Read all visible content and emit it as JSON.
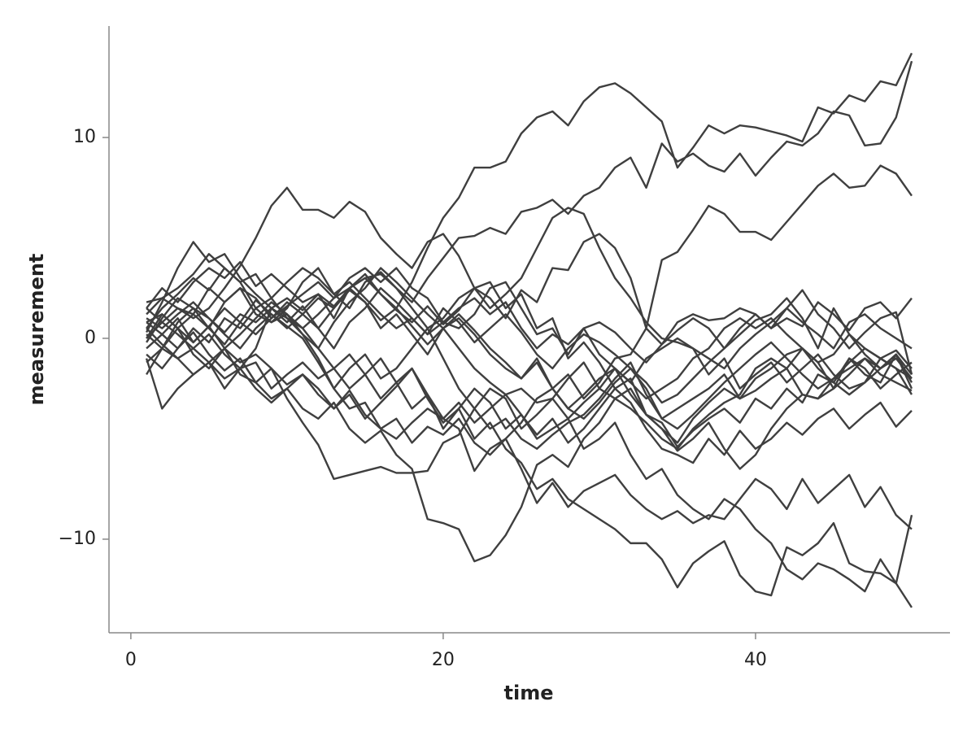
{
  "chart_data": {
    "type": "line",
    "xlabel": "time",
    "ylabel": "measurement",
    "xlim": [
      -1.4,
      52.45
    ],
    "ylim": [
      -14.66,
      15.55
    ],
    "xticks": [
      0,
      20,
      40
    ],
    "yticks": [
      {
        "value": -10,
        "label": "−10"
      },
      0,
      10
    ],
    "color": "#3f3f3f",
    "x": [
      1,
      2,
      3,
      4,
      5,
      6,
      7,
      8,
      9,
      10,
      11,
      12,
      13,
      14,
      15,
      16,
      17,
      18,
      19,
      20,
      21,
      22,
      23,
      24,
      25,
      26,
      27,
      28,
      29,
      30,
      31,
      32,
      33,
      34,
      35,
      36,
      37,
      38,
      39,
      40,
      41,
      42,
      43,
      44,
      45,
      46,
      47,
      48,
      49,
      50
    ],
    "series": [
      {
        "values": [
          1.0,
          0.5,
          1.2,
          1.8,
          1.0,
          0.3,
          1.2,
          0.8,
          1.5,
          2.0,
          1.4,
          2.2,
          1.6,
          2.5,
          3.0,
          2.2,
          1.5,
          2.8,
          4.5,
          6.0,
          7.0,
          8.5,
          8.5,
          8.8,
          10.2,
          11.0,
          11.3,
          10.6,
          11.8,
          12.5,
          12.7,
          12.2,
          11.5,
          10.8,
          8.5,
          9.5,
          10.6,
          10.2,
          10.6,
          10.5,
          10.3,
          10.1,
          9.8,
          11.5,
          11.2,
          12.1,
          11.8,
          12.8,
          12.6,
          14.2
        ]
      },
      {
        "values": [
          0.5,
          1.5,
          2.2,
          3.0,
          2.4,
          3.5,
          2.8,
          3.2,
          2.0,
          2.8,
          3.5,
          3.0,
          2.2,
          1.5,
          2.8,
          3.3,
          2.5,
          1.8,
          3.0,
          4.0,
          5.0,
          5.1,
          5.5,
          5.2,
          6.3,
          6.5,
          6.9,
          6.2,
          7.1,
          7.5,
          8.5,
          9.0,
          7.5,
          9.7,
          8.8,
          9.2,
          8.6,
          8.3,
          9.2,
          8.1,
          9.0,
          9.8,
          9.6,
          10.2,
          11.3,
          11.1,
          9.6,
          9.7,
          11.0,
          13.8
        ]
      },
      {
        "values": [
          0.2,
          -0.5,
          0.8,
          1.5,
          0.5,
          -0.3,
          0.8,
          1.9,
          1.2,
          0.5,
          1.2,
          2.0,
          1.5,
          2.5,
          3.2,
          2.2,
          1.4,
          0.8,
          1.6,
          0.7,
          1.4,
          2.5,
          2.0,
          1.0,
          2.4,
          1.8,
          3.5,
          3.4,
          4.8,
          5.2,
          4.5,
          3.0,
          0.5,
          -0.3,
          0.4,
          1.0,
          0.5,
          -0.5,
          0.2,
          0.9,
          1.2,
          2.0,
          1.0,
          -0.5,
          1.5,
          0.2,
          -0.8,
          -1.5,
          -1.0,
          -2.0
        ]
      },
      {
        "values": [
          -0.5,
          0.2,
          1.0,
          -0.2,
          0.6,
          1.5,
          0.8,
          0.2,
          1.0,
          1.8,
          1.2,
          0.5,
          1.5,
          2.4,
          1.8,
          0.9,
          1.5,
          0.6,
          -0.3,
          0.5,
          1.2,
          0.4,
          -0.5,
          -1.2,
          -2.0,
          -1.0,
          -2.5,
          -1.8,
          -3.0,
          -2.2,
          -1.0,
          -0.8,
          0.5,
          3.9,
          4.3,
          5.4,
          6.6,
          6.2,
          5.3,
          5.3,
          4.9,
          5.8,
          6.7,
          7.6,
          8.2,
          7.5,
          7.6,
          8.6,
          8.2,
          7.1
        ]
      },
      {
        "values": [
          -0.8,
          -1.5,
          -0.5,
          0.3,
          -0.8,
          -1.6,
          -1.0,
          -2.2,
          -3.0,
          -2.5,
          -3.5,
          -4.0,
          -3.2,
          -4.5,
          -5.2,
          -4.6,
          -5.8,
          -6.5,
          -9.0,
          -9.2,
          -9.5,
          -11.1,
          -10.8,
          -9.8,
          -8.4,
          -6.3,
          -5.8,
          -6.4,
          -5.0,
          -4.2,
          -3.0,
          -2.5,
          -3.8,
          -4.5,
          -5.6,
          -5.0,
          -4.2,
          -5.5,
          -6.5,
          -5.8,
          -4.5,
          -3.5,
          -2.8,
          -3.0,
          -2.0,
          -1.5,
          -1.0,
          -1.8,
          -2.2,
          -2.6
        ]
      },
      {
        "values": [
          1.5,
          0.8,
          0.2,
          -0.5,
          -1.2,
          -0.5,
          -1.8,
          -2.2,
          -1.5,
          -3.0,
          -4.2,
          -5.3,
          -7.0,
          -6.8,
          -6.6,
          -6.4,
          -6.7,
          -6.7,
          -6.6,
          -5.2,
          -4.8,
          -3.5,
          -2.5,
          -3.0,
          -4.5,
          -3.8,
          -3.0,
          -4.0,
          -5.5,
          -5.0,
          -4.2,
          -5.8,
          -7.0,
          -6.5,
          -7.8,
          -8.5,
          -9.0,
          -8.0,
          -8.5,
          -9.5,
          -10.2,
          -11.5,
          -12.0,
          -11.2,
          -11.5,
          -12.0,
          -12.6,
          -11.0,
          -12.2,
          -13.4
        ]
      },
      {
        "values": [
          0.8,
          1.2,
          0.5,
          -0.2,
          0.6,
          -0.5,
          -1.2,
          -0.8,
          -1.5,
          -2.3,
          -1.8,
          -2.5,
          -3.5,
          -2.8,
          -4.0,
          -3.2,
          -2.4,
          -1.5,
          -3.0,
          -4.2,
          -3.5,
          -5.0,
          -4.2,
          -5.5,
          -6.2,
          -7.5,
          -7.0,
          -8.0,
          -8.5,
          -9.0,
          -9.5,
          -10.2,
          -10.2,
          -11.0,
          -12.4,
          -11.2,
          -10.6,
          -10.1,
          -11.8,
          -12.6,
          -12.8,
          -10.4,
          -10.8,
          -10.2,
          -9.2,
          -11.2,
          -11.6,
          -11.7,
          -12.2,
          -8.8
        ]
      },
      {
        "values": [
          -1.2,
          -0.5,
          -1.0,
          -1.8,
          -1.2,
          -2.0,
          -1.5,
          -2.5,
          -3.2,
          -2.5,
          -1.8,
          -2.8,
          -3.5,
          -2.6,
          -3.8,
          -4.5,
          -4.0,
          -5.2,
          -4.4,
          -4.8,
          -4.0,
          -5.2,
          -5.8,
          -5.0,
          -6.5,
          -8.2,
          -7.2,
          -8.4,
          -7.6,
          -7.2,
          -6.8,
          -7.8,
          -8.5,
          -9.0,
          -8.6,
          -9.2,
          -8.8,
          -9.0,
          -8.0,
          -7.0,
          -7.5,
          -8.5,
          -7.0,
          -8.2,
          -7.5,
          -6.8,
          -8.4,
          -7.4,
          -8.8,
          -9.5
        ]
      },
      {
        "values": [
          1.8,
          2.0,
          1.5,
          1.0,
          1.5,
          2.5,
          3.6,
          5.0,
          6.6,
          7.5,
          6.4,
          6.4,
          6.0,
          6.8,
          6.3,
          5.0,
          4.2,
          3.5,
          4.8,
          5.2,
          4.1,
          2.5,
          2.8,
          1.5,
          2.2,
          0.5,
          1.0,
          -1.0,
          -0.2,
          -1.2,
          -2.5,
          -2.0,
          -3.8,
          -4.5,
          -5.2,
          -4.0,
          -3.2,
          -2.5,
          -3.0,
          -2.0,
          -1.5,
          -0.8,
          -0.5,
          -1.2,
          -2.5,
          -1.8,
          -1.0,
          -1.5,
          -0.8,
          -2.2
        ]
      },
      {
        "values": [
          0.0,
          0.8,
          1.5,
          1.2,
          2.5,
          1.8,
          2.5,
          2.0,
          1.0,
          1.6,
          2.2,
          2.8,
          2.0,
          3.0,
          3.5,
          2.8,
          3.5,
          2.5,
          2.0,
          0.8,
          0.5,
          1.2,
          2.5,
          2.8,
          1.5,
          0.2,
          0.5,
          -0.8,
          0.5,
          0.8,
          0.3,
          -0.5,
          -1.2,
          -0.3,
          0.8,
          1.2,
          0.9,
          1.0,
          1.5,
          1.2,
          0.5,
          1.0,
          0.6,
          1.8,
          1.2,
          0.4,
          1.5,
          1.8,
          1.0,
          2.0
        ]
      },
      {
        "values": [
          1.5,
          2.5,
          1.8,
          2.8,
          3.5,
          3.0,
          3.8,
          2.6,
          3.2,
          2.5,
          1.8,
          2.2,
          1.0,
          2.5,
          1.8,
          0.5,
          1.2,
          0.2,
          -0.8,
          0.5,
          -0.5,
          -1.5,
          -2.2,
          -2.8,
          -2.5,
          -3.2,
          -3.0,
          -2.0,
          -1.2,
          -2.5,
          -3.0,
          -3.5,
          -4.2,
          -5.0,
          -5.5,
          -4.5,
          -3.8,
          -3.2,
          -2.8,
          -1.5,
          -1.0,
          -1.5,
          -0.5,
          -1.2,
          -0.8,
          0.2,
          -0.5,
          -1.0,
          -0.6,
          -1.5
        ]
      },
      {
        "values": [
          0.5,
          -0.3,
          -1.0,
          -0.5,
          0.2,
          -0.8,
          -1.5,
          -1.2,
          -2.5,
          -1.8,
          -1.2,
          -2.0,
          -1.5,
          -0.8,
          -1.8,
          -1.0,
          -2.2,
          -1.5,
          -2.8,
          -4.5,
          -3.5,
          -2.5,
          -3.2,
          -4.5,
          -3.8,
          -5.0,
          -4.5,
          -4.0,
          -3.2,
          -2.5,
          -1.5,
          -2.8,
          -3.8,
          -4.2,
          -5.4,
          -4.6,
          -4.0,
          -3.5,
          -4.2,
          -3.0,
          -3.5,
          -2.5,
          -3.2,
          -1.8,
          -2.2,
          -1.0,
          -1.5,
          -2.5,
          -1.8,
          -1.2
        ]
      },
      {
        "values": [
          -1.8,
          -0.5,
          0.5,
          1.2,
          0.5,
          1.8,
          2.5,
          1.2,
          0.8,
          1.5,
          2.8,
          3.5,
          2.2,
          2.8,
          2.0,
          1.2,
          0.5,
          1.0,
          0.2,
          0.8,
          1.5,
          2.0,
          1.2,
          1.8,
          0.5,
          -0.5,
          0.2,
          -0.3,
          0.5,
          -0.8,
          -1.5,
          -2.2,
          -1.0,
          -0.5,
          0.0,
          -0.5,
          -1.8,
          -1.0,
          -2.5,
          -1.8,
          -1.2,
          -2.2,
          -1.5,
          -0.8,
          -1.8,
          -2.5,
          -2.2,
          -1.0,
          -1.5,
          -2.0
        ]
      },
      {
        "values": [
          0.8,
          0.2,
          -0.5,
          0.5,
          -0.2,
          1.0,
          0.5,
          1.5,
          0.8,
          1.2,
          0.2,
          -0.5,
          -1.5,
          -2.5,
          -1.8,
          -3.0,
          -2.2,
          -3.5,
          -2.8,
          -4.0,
          -3.2,
          -4.2,
          -3.5,
          -2.8,
          -3.8,
          -4.8,
          -4.0,
          -5.2,
          -4.5,
          -3.5,
          -2.5,
          -3.2,
          -4.5,
          -5.5,
          -5.8,
          -6.2,
          -5.0,
          -5.8,
          -4.6,
          -5.5,
          -5.0,
          -4.2,
          -4.8,
          -4.0,
          -3.5,
          -4.5,
          -3.8,
          -3.2,
          -4.4,
          -3.6
        ]
      },
      {
        "values": [
          -0.2,
          1.0,
          2.0,
          1.5,
          1.0,
          0.2,
          -0.5,
          0.5,
          1.2,
          0.6,
          0.0,
          -1.2,
          -2.5,
          -1.5,
          -0.8,
          -2.0,
          -1.5,
          -0.5,
          0.5,
          1.0,
          2.0,
          2.5,
          1.5,
          2.2,
          3.0,
          4.5,
          6.0,
          6.5,
          6.2,
          4.5,
          3.0,
          2.0,
          0.8,
          0.0,
          -0.2,
          -0.5,
          -1.0,
          -1.5,
          -0.5,
          0.2,
          0.8,
          1.5,
          2.4,
          1.2,
          0.5,
          -0.5,
          0.3,
          1.0,
          1.3,
          -1.8
        ]
      },
      {
        "values": [
          1.2,
          2.0,
          2.5,
          3.2,
          4.2,
          3.5,
          2.8,
          1.5,
          2.0,
          1.0,
          0.2,
          -1.0,
          -2.5,
          -3.5,
          -3.2,
          -4.5,
          -5.0,
          -4.2,
          -3.5,
          -4.0,
          -4.5,
          -6.6,
          -5.5,
          -5.0,
          -4.2,
          -3.0,
          -2.5,
          -3.5,
          -4.0,
          -3.2,
          -2.2,
          -1.5,
          -2.5,
          -4.0,
          -3.5,
          -3.0,
          -2.5,
          -1.8,
          -3.0,
          -2.6,
          -2.0,
          -1.5,
          -2.8,
          -3.0,
          -2.5,
          -1.0,
          -1.8,
          -2.2,
          -0.8,
          -2.5
        ]
      },
      {
        "values": [
          0.3,
          1.8,
          3.5,
          4.8,
          3.8,
          4.2,
          3.0,
          2.2,
          1.5,
          0.8,
          1.6,
          0.5,
          -0.5,
          0.8,
          1.5,
          2.5,
          1.8,
          1.0,
          0.2,
          1.5,
          0.8,
          -0.2,
          0.5,
          1.2,
          0.3,
          -0.8,
          -1.5,
          -0.5,
          0.2,
          -0.2,
          -0.8,
          -1.5,
          -2.2,
          -3.2,
          -2.8,
          -2.0,
          -1.2,
          -0.5,
          0.5,
          1.2,
          0.5,
          1.5,
          0.8,
          0.2,
          -0.5,
          0.8,
          1.2,
          0.5,
          0.0,
          -0.5
        ]
      },
      {
        "values": [
          -1.0,
          -3.5,
          -2.5,
          -1.8,
          -1.2,
          -2.5,
          -1.5,
          -0.5,
          1.5,
          1.0,
          0.5,
          1.2,
          2.0,
          2.5,
          3.0,
          3.2,
          2.5,
          1.5,
          0.5,
          -1.0,
          -2.5,
          -3.5,
          -4.5,
          -4.0,
          -5.0,
          -5.5,
          -4.8,
          -4.2,
          -3.8,
          -3.0,
          -2.0,
          -1.2,
          -2.8,
          -4.0,
          -4.5,
          -3.8,
          -3.0,
          -2.2,
          -1.5,
          -0.8,
          -0.2,
          -1.0,
          -1.8,
          -2.5,
          -2.0,
          -1.2,
          -0.5,
          -1.0,
          -1.5,
          -2.8
        ]
      },
      {
        "values": [
          0.0,
          1.2,
          0.5,
          -0.8,
          -1.5,
          -0.5,
          0.2,
          1.0,
          1.8,
          1.2,
          0.5,
          -0.5,
          0.8,
          1.8,
          2.5,
          3.5,
          2.8,
          2.0,
          1.2,
          0.5,
          1.0,
          0.2,
          -0.8,
          -1.5,
          -2.0,
          -1.2,
          -2.5,
          -3.5,
          -2.8,
          -2.0,
          -1.5,
          -2.2,
          -3.0,
          -2.5,
          -2.0,
          -1.0,
          -0.5,
          0.5,
          1.0,
          0.5,
          1.0,
          0.2,
          -0.5,
          -1.5,
          -2.2,
          -2.8,
          -2.2,
          -1.5,
          -0.8,
          -1.8
        ]
      }
    ]
  }
}
